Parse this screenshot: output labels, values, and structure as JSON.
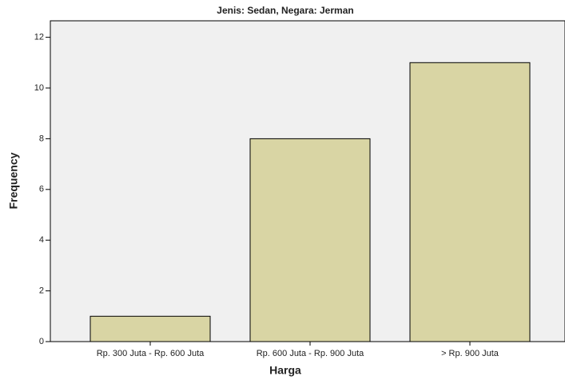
{
  "chart_data": {
    "type": "bar",
    "title": "Jenis: Sedan, Negara: Jerman",
    "x_label": "Harga",
    "y_label": "Frequency",
    "categories": [
      "Rp. 300 Juta - Rp. 600 Juta",
      "Rp. 600 Juta - Rp. 900 Juta",
      "> Rp. 900 Juta"
    ],
    "values": [
      1,
      8,
      11
    ],
    "color": "#d9d5a4",
    "ylim": [
      0,
      12.65
    ],
    "yticks": [
      0,
      2,
      4,
      6,
      8,
      10,
      12
    ],
    "grid": false
  }
}
